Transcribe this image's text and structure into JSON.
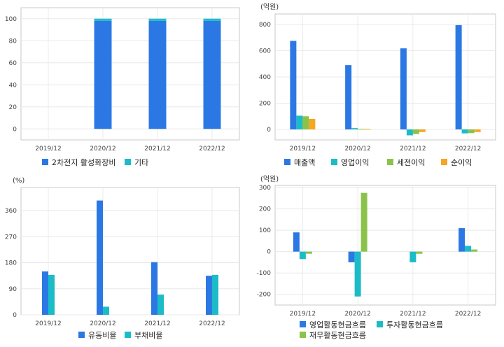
{
  "chart_data": [
    {
      "id": "product_mix",
      "type": "bar",
      "stacked": true,
      "unit_label": "",
      "categories": [
        "2019/12",
        "2020/12",
        "2021/12",
        "2022/12"
      ],
      "series": [
        {
          "name": "2차전지 활성화장비",
          "color": "#2b78e4",
          "values": [
            null,
            98,
            98,
            98
          ]
        },
        {
          "name": "기타",
          "color": "#1bbcc8",
          "values": [
            null,
            2,
            2,
            2
          ]
        }
      ],
      "ylim": [
        -10,
        110
      ],
      "yticks": [
        0,
        20,
        40,
        60,
        80,
        100
      ],
      "grid": true,
      "legend": "bottom"
    },
    {
      "id": "income",
      "type": "bar",
      "unit_label": "(억원)",
      "categories": [
        "2019/12",
        "2020/12",
        "2021/12",
        "2022/12"
      ],
      "series": [
        {
          "name": "매출액",
          "color": "#2b78e4",
          "values": [
            675,
            490,
            618,
            795
          ]
        },
        {
          "name": "영업이익",
          "color": "#1bbcc8",
          "values": [
            105,
            10,
            -45,
            -30
          ]
        },
        {
          "name": "세전이익",
          "color": "#8bc34a",
          "values": [
            100,
            5,
            -35,
            -28
          ]
        },
        {
          "name": "순이익",
          "color": "#f5a623",
          "values": [
            80,
            5,
            -20,
            -20
          ]
        }
      ],
      "ylim": [
        -80,
        880
      ],
      "yticks": [
        0,
        200,
        400,
        600,
        800
      ],
      "grid": true,
      "legend": "bottom"
    },
    {
      "id": "ratios",
      "type": "bar",
      "unit_label": "(%)",
      "categories": [
        "2019/12",
        "2020/12",
        "2021/12",
        "2022/12"
      ],
      "series": [
        {
          "name": "유동비율",
          "color": "#2b78e4",
          "values": [
            150,
            395,
            182,
            135
          ]
        },
        {
          "name": "부채비율",
          "color": "#1bbcc8",
          "values": [
            138,
            28,
            70,
            138
          ]
        }
      ],
      "ylim": [
        0,
        440
      ],
      "yticks": [
        0,
        90,
        180,
        270,
        360
      ],
      "grid": true,
      "legend": "bottom"
    },
    {
      "id": "cashflow",
      "type": "bar",
      "unit_label": "(억원)",
      "categories": [
        "2019/12",
        "2020/12",
        "2021/12",
        "2022/12"
      ],
      "series": [
        {
          "name": "영업활동현금흐름",
          "color": "#2b78e4",
          "values": [
            90,
            -50,
            0,
            110
          ]
        },
        {
          "name": "투자활동현금흐름",
          "color": "#1bbcc8",
          "values": [
            -35,
            -210,
            -50,
            27
          ]
        },
        {
          "name": "재무활동현금흐름",
          "color": "#8bc34a",
          "values": [
            -10,
            275,
            -10,
            10
          ]
        }
      ],
      "ylim": [
        -250,
        310
      ],
      "yticks": [
        -200,
        -100,
        0,
        100,
        200,
        300
      ],
      "grid": true,
      "legend": "bottom"
    }
  ]
}
